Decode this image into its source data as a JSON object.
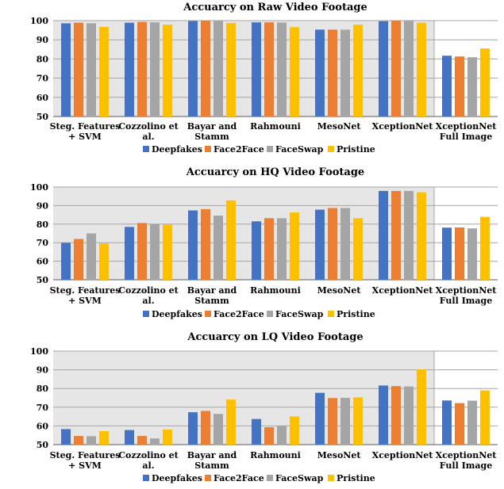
{
  "chart_data": [
    {
      "type": "bar",
      "title": "Accuarcy on Raw Video Footage",
      "categories": [
        [
          "Steg. Features",
          "+ SVM"
        ],
        [
          "Cozzolino et",
          "al."
        ],
        [
          "Bayar and",
          "Stamm"
        ],
        [
          "Rahmouni"
        ],
        [
          "MesoNet"
        ],
        [
          "XceptionNet"
        ],
        [
          "XceptionNet",
          "Full Image"
        ]
      ],
      "shaded_categories": 6,
      "ylim": [
        50,
        100
      ],
      "yticks": [
        50,
        60,
        70,
        80,
        90,
        100
      ],
      "grid": true,
      "legend": "bottom",
      "series": [
        {
          "name": "Deepfakes",
          "values": [
            98.6,
            98.9,
            99.8,
            99.1,
            95.3,
            99.7,
            81.7
          ]
        },
        {
          "name": "Face2Face",
          "values": [
            98.9,
            99.3,
            99.9,
            99.1,
            95.3,
            99.9,
            81.3
          ]
        },
        {
          "name": "FaceSwap",
          "values": [
            98.6,
            99.1,
            99.8,
            99.0,
            95.3,
            99.8,
            80.9
          ]
        },
        {
          "name": "Pristine",
          "values": [
            96.7,
            97.9,
            98.8,
            96.6,
            97.9,
            98.9,
            85.5
          ]
        }
      ]
    },
    {
      "type": "bar",
      "title": "Accuarcy on HQ Video Footage",
      "categories": [
        [
          "Steg. Features",
          "+ SVM"
        ],
        [
          "Cozzolino et",
          "al."
        ],
        [
          "Bayar and",
          "Stamm"
        ],
        [
          "Rahmouni"
        ],
        [
          "MesoNet"
        ],
        [
          "XceptionNet"
        ],
        [
          "XceptionNet",
          "Full Image"
        ]
      ],
      "shaded_categories": 6,
      "ylim": [
        50,
        100
      ],
      "yticks": [
        50,
        60,
        70,
        80,
        90,
        100
      ],
      "grid": true,
      "legend": "bottom",
      "series": [
        {
          "name": "Deepfakes",
          "values": [
            69.9,
            78.5,
            87.4,
            81.5,
            87.8,
            97.9,
            78.1
          ]
        },
        {
          "name": "Face2Face",
          "values": [
            72.0,
            80.6,
            88.1,
            83.2,
            88.7,
            97.9,
            78.2
          ]
        },
        {
          "name": "FaceSwap",
          "values": [
            75.0,
            79.9,
            84.6,
            83.2,
            88.7,
            97.9,
            77.7
          ]
        },
        {
          "name": "Pristine",
          "values": [
            69.6,
            79.8,
            92.8,
            86.3,
            83.2,
            97.2,
            83.9
          ]
        }
      ]
    },
    {
      "type": "bar",
      "title": "Accuarcy on LQ Video Footage",
      "categories": [
        [
          "Steg. Features",
          "+ SVM"
        ],
        [
          "Cozzolino et",
          "al."
        ],
        [
          "Bayar and",
          "Stamm"
        ],
        [
          "Rahmouni"
        ],
        [
          "MesoNet"
        ],
        [
          "XceptionNet"
        ],
        [
          "XceptionNet",
          "Full Image"
        ]
      ],
      "shaded_categories": 6,
      "ylim": [
        50,
        100
      ],
      "yticks": [
        50,
        60,
        70,
        80,
        90,
        100
      ],
      "grid": true,
      "legend": "bottom",
      "series": [
        {
          "name": "Deepfakes",
          "values": [
            58.3,
            57.8,
            67.3,
            63.7,
            77.7,
            81.6,
            73.6
          ]
        },
        {
          "name": "Face2Face",
          "values": [
            54.6,
            54.6,
            68.0,
            59.3,
            74.9,
            81.3,
            72.2
          ]
        },
        {
          "name": "FaceSwap",
          "values": [
            54.5,
            53.3,
            66.4,
            60.0,
            75.0,
            81.1,
            73.5
          ]
        },
        {
          "name": "Pristine",
          "values": [
            57.2,
            58.1,
            74.1,
            65.1,
            75.3,
            90.2,
            79.0
          ]
        }
      ]
    }
  ],
  "colors": {
    "series": [
      "#4472c4",
      "#ed7d31",
      "#a5a5a5",
      "#ffc000"
    ],
    "shade": "#e7e6e6",
    "grid": "#a6a6a6",
    "axis": "#595959"
  }
}
